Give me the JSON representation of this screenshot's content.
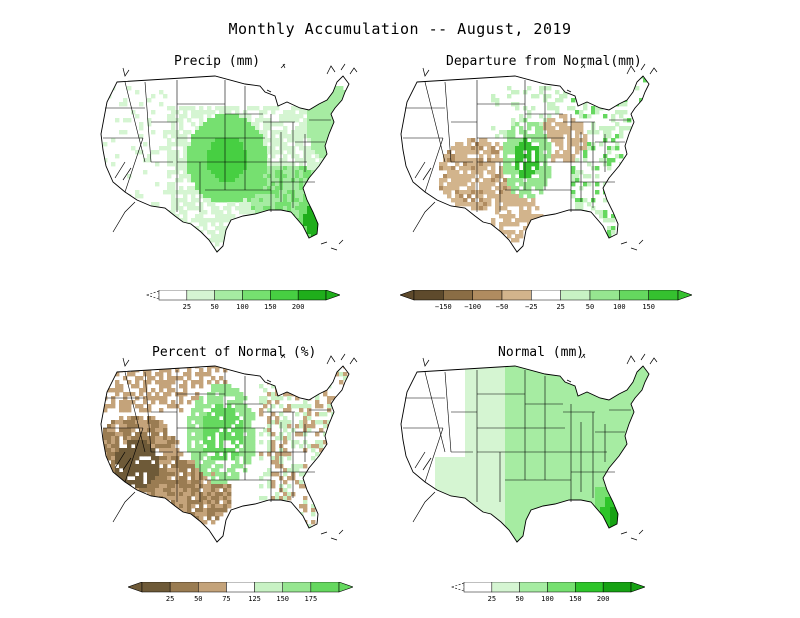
{
  "title": "Monthly Accumulation -- August, 2019",
  "panels": [
    {
      "id": "precip",
      "title": "Precip (mm)",
      "legend": {
        "colors": [
          "#ffffff",
          "#d5f5d2",
          "#a6eca2",
          "#76e070",
          "#47cf42",
          "#1fae1b"
        ],
        "ticks": [
          "25",
          "50",
          "100",
          "150",
          "200"
        ],
        "low_arrow": "dashed",
        "high_arrow": true
      }
    },
    {
      "id": "departure",
      "title": "Departure from Normal(mm)",
      "legend": {
        "colors": [
          "#5e4a2c",
          "#8a6d45",
          "#b08c60",
          "#d2b48c",
          "#ffffff",
          "#c8f2c4",
          "#96e690",
          "#65d85f",
          "#35c12f"
        ],
        "ticks": [
          "−150",
          "−100",
          "−50",
          "−25",
          "25",
          "50",
          "100",
          "150"
        ],
        "low_arrow": true,
        "high_arrow": true
      }
    },
    {
      "id": "percent",
      "title": "Percent of Normal (%)",
      "legend": {
        "colors": [
          "#6e5a38",
          "#9a7c52",
          "#c4a37a",
          "#ffffff",
          "#c8f2c4",
          "#96e690",
          "#65d85f"
        ],
        "ticks": [
          "25",
          "50",
          "75",
          "125",
          "150",
          "175"
        ],
        "low_arrow": true,
        "high_arrow": true
      }
    },
    {
      "id": "normal",
      "title": "Normal (mm)",
      "legend": {
        "colors": [
          "#ffffff",
          "#d5f5d2",
          "#a6eca2",
          "#76e070",
          "#2ec52a",
          "#16a213"
        ],
        "ticks": [
          "25",
          "50",
          "100",
          "150",
          "200"
        ],
        "low_arrow": "dashed",
        "high_arrow": true
      }
    }
  ]
}
